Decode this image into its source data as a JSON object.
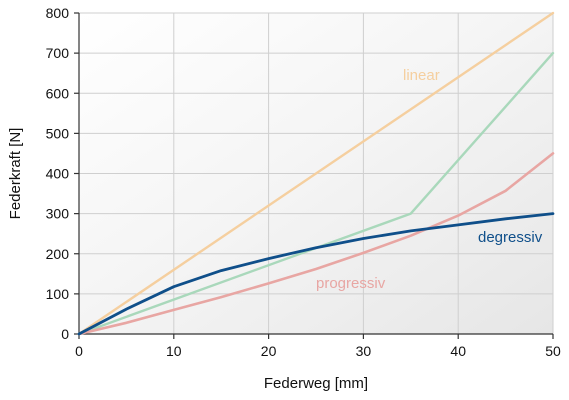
{
  "chart_data": {
    "type": "line",
    "xlabel": "Federweg [mm]",
    "ylabel": "Federkraft [N]",
    "xlim": [
      0,
      50
    ],
    "ylim": [
      0,
      800
    ],
    "x_ticks": [
      "0",
      "10",
      "20",
      "30",
      "40",
      "50"
    ],
    "y_ticks": [
      "0",
      "100",
      "200",
      "300",
      "400",
      "500",
      "600",
      "700",
      "800"
    ],
    "grid": true,
    "series": [
      {
        "name": "linear",
        "color": "#f5cf9f",
        "x": [
          0,
          50
        ],
        "y": [
          0,
          800
        ]
      },
      {
        "name": "",
        "color": "#a9d8bb",
        "x": [
          0,
          35,
          50
        ],
        "y": [
          0,
          300,
          700
        ]
      },
      {
        "name": "progressiv",
        "color": "#e8a6a3",
        "x": [
          0,
          5,
          10,
          15,
          20,
          25,
          30,
          35,
          40,
          45,
          50
        ],
        "y": [
          0,
          28,
          60,
          92,
          126,
          162,
          202,
          245,
          295,
          357,
          450
        ]
      },
      {
        "name": "degressiv",
        "color": "#0f4f8a",
        "x": [
          0,
          5,
          10,
          15,
          20,
          25,
          30,
          35,
          40,
          45,
          50
        ],
        "y": [
          0,
          62,
          118,
          158,
          188,
          215,
          238,
          257,
          272,
          287,
          300
        ]
      }
    ]
  }
}
